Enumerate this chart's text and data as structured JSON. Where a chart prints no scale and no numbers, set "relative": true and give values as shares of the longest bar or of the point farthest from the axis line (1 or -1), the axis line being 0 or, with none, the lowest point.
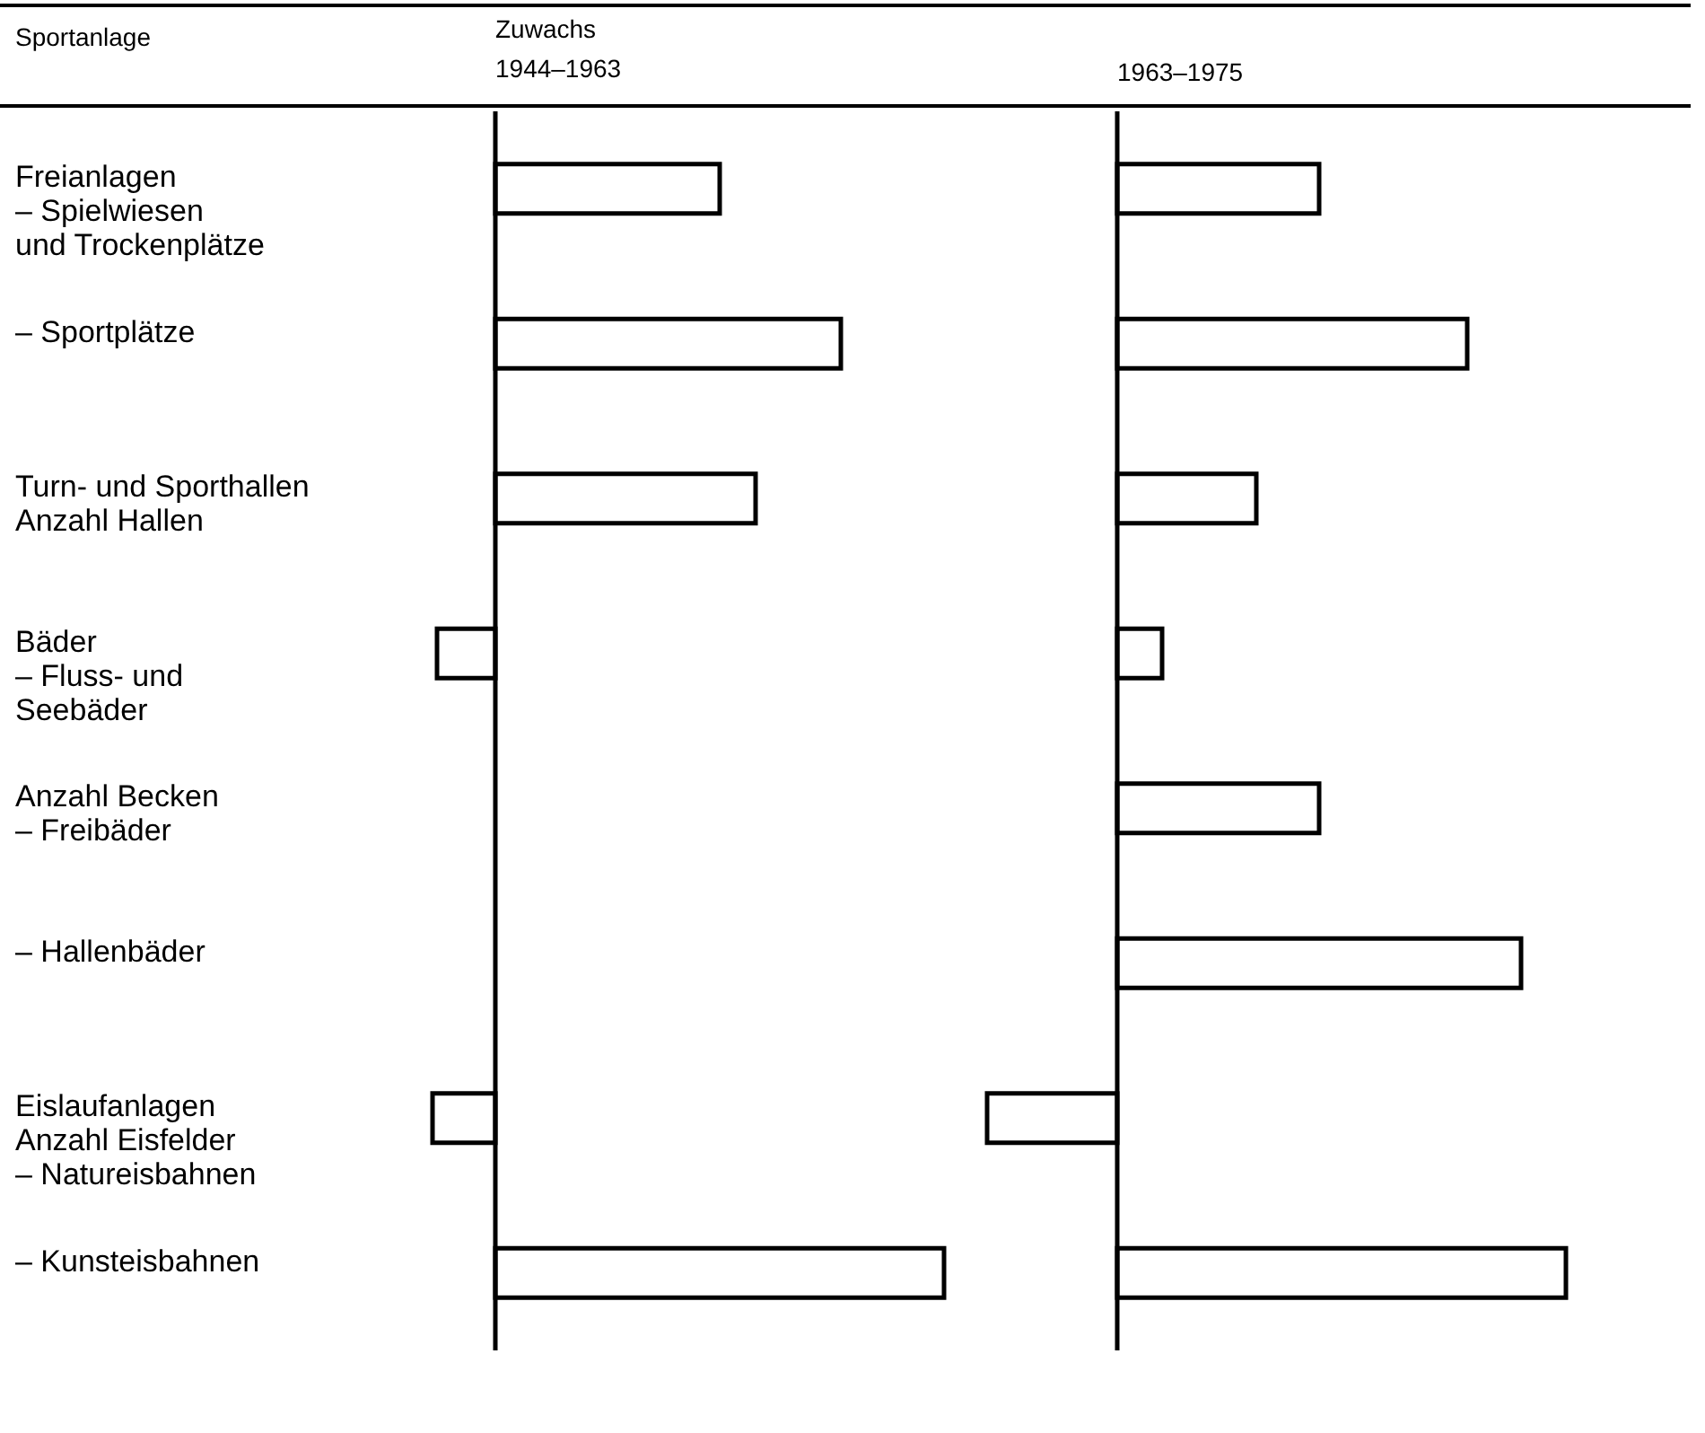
{
  "chart_data": [
    {
      "type": "bar",
      "orientation": "horizontal",
      "relative": true,
      "title": "Zuwachs",
      "subtitle": "1944–1963",
      "ylabel": "Sportanlage",
      "tick_labels": "y",
      "color": "#ffffff",
      "categories": [
        "Freianlagen\n– Spielwiesen\n   und Trockenplätze",
        "– Sportplätze",
        "Turn- und Sporthallen\nAnzahl Hallen",
        "Bäder\n– Fluss- und\n   Seebäder",
        "Anzahl Becken\n– Freibäder",
        "– Hallenbäder",
        "Eislaufanlagen\nAnzahl Eisfelder\n– Natureisbahnen",
        "– Kunsteisbahnen"
      ],
      "values": [
        0.5,
        0.77,
        0.58,
        -0.13,
        null,
        null,
        -0.14,
        1
      ]
    },
    {
      "type": "bar",
      "orientation": "horizontal",
      "relative": true,
      "title": "1963–1975",
      "tick_labels": false,
      "color": "#ffffff",
      "values": [
        0.45,
        0.78,
        0.31,
        0.1,
        0.45,
        0.9,
        -0.29,
        1
      ]
    }
  ]
}
